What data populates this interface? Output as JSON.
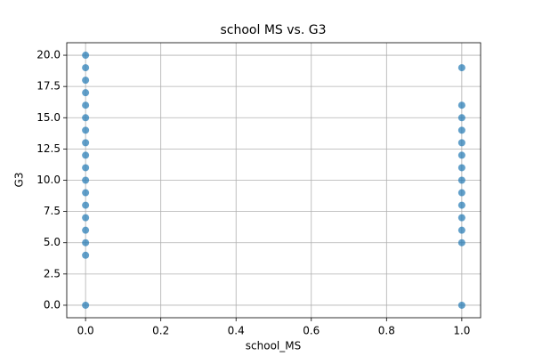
{
  "chart_data": {
    "type": "scatter",
    "title": "school MS vs. G3",
    "x_label": "school_MS",
    "y_label": "G3",
    "x": [
      0,
      0,
      0,
      0,
      0,
      0,
      0,
      0,
      0,
      0,
      0,
      0,
      0,
      0,
      0,
      0,
      0,
      0,
      1,
      1,
      1,
      1,
      1,
      1,
      1,
      1,
      1,
      1,
      1,
      1,
      1,
      1
    ],
    "values": [
      0,
      4,
      5,
      6,
      7,
      8,
      9,
      10,
      11,
      12,
      13,
      14,
      15,
      16,
      17,
      18,
      19,
      20,
      0,
      5,
      6,
      7,
      8,
      9,
      10,
      11,
      12,
      13,
      14,
      15,
      16,
      19
    ],
    "color": "#1f77b4",
    "alpha": 0.7,
    "grid": true,
    "xlim": [
      -0.05,
      1.05
    ],
    "xticks": [
      {
        "value": 0,
        "label": "0.0"
      },
      {
        "value": 0.2,
        "label": "0.2"
      },
      {
        "value": 0.4,
        "label": "0.4"
      },
      {
        "value": 0.6,
        "label": "0.6"
      },
      {
        "value": 0.8,
        "label": "0.8"
      },
      {
        "value": 1,
        "label": "1.0"
      }
    ],
    "ylim": [
      -1,
      21
    ],
    "yticks": [
      {
        "value": 0,
        "label": "0.0"
      },
      2.5,
      {
        "value": 5,
        "label": "5.0"
      },
      7.5,
      {
        "value": 10,
        "label": "10.0"
      },
      12.5,
      {
        "value": 15,
        "label": "15.0"
      },
      17.5,
      {
        "value": 20,
        "label": "20.0"
      }
    ]
  }
}
